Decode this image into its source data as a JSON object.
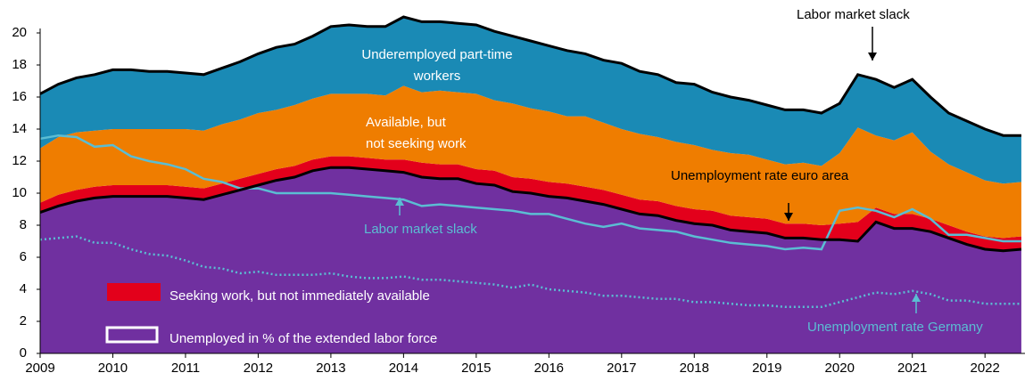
{
  "chart_data": {
    "type": "stacked_area",
    "x": [
      2009,
      2009.25,
      2009.5,
      2009.75,
      2010,
      2010.25,
      2010.5,
      2010.75,
      2011,
      2011.25,
      2011.5,
      2011.75,
      2012,
      2012.25,
      2012.5,
      2012.75,
      2013,
      2013.25,
      2013.5,
      2013.75,
      2014,
      2014.25,
      2014.5,
      2014.75,
      2015,
      2015.25,
      2015.5,
      2015.75,
      2016,
      2016.25,
      2016.5,
      2016.75,
      2017,
      2017.25,
      2017.5,
      2017.75,
      2018,
      2018.25,
      2018.5,
      2018.75,
      2019,
      2019.25,
      2019.5,
      2019.75,
      2020,
      2020.25,
      2020.5,
      2020.75,
      2021,
      2021.25,
      2021.5,
      2021.75,
      2022,
      2022.25,
      2022.5
    ],
    "xlim": [
      2009,
      2022.55
    ],
    "xticks": [
      2009,
      2010,
      2011,
      2012,
      2013,
      2014,
      2015,
      2016,
      2017,
      2018,
      2019,
      2020,
      2021,
      2022
    ],
    "ylim": [
      0,
      20
    ],
    "yticks": [
      0,
      2,
      4,
      6,
      8,
      10,
      12,
      14,
      16,
      18,
      20
    ],
    "series": [
      {
        "color": "#7030a0",
        "outline": "#000000",
        "values": [
          8.8,
          9.2,
          9.5,
          9.7,
          9.8,
          9.8,
          9.8,
          9.8,
          9.7,
          9.6,
          9.9,
          10.2,
          10.5,
          10.8,
          11.0,
          11.4,
          11.6,
          11.6,
          11.5,
          11.4,
          11.3,
          11.0,
          10.9,
          10.9,
          10.6,
          10.5,
          10.1,
          10.0,
          9.8,
          9.7,
          9.5,
          9.3,
          9.0,
          8.7,
          8.6,
          8.3,
          8.1,
          8.0,
          7.7,
          7.6,
          7.5,
          7.2,
          7.2,
          7.1,
          7.1,
          7.0,
          8.2,
          7.8,
          7.8,
          7.6,
          7.2,
          6.8,
          6.5,
          6.4,
          6.5
        ]
      },
      {
        "name": "Seeking work, but not immediately available",
        "color": "#e3001b",
        "values": [
          0.6,
          0.7,
          0.7,
          0.7,
          0.7,
          0.7,
          0.7,
          0.7,
          0.7,
          0.7,
          0.7,
          0.7,
          0.7,
          0.7,
          0.7,
          0.7,
          0.7,
          0.7,
          0.7,
          0.7,
          0.8,
          0.9,
          0.9,
          0.9,
          0.9,
          0.9,
          0.9,
          0.9,
          0.9,
          0.9,
          0.9,
          0.9,
          0.9,
          0.9,
          0.9,
          0.9,
          0.9,
          0.9,
          0.9,
          0.9,
          0.9,
          0.9,
          0.9,
          0.9,
          1.0,
          1.2,
          0.9,
          0.9,
          0.9,
          0.8,
          0.8,
          0.8,
          0.8,
          0.8,
          0.8
        ]
      },
      {
        "color": "#ef7d00",
        "values": [
          3.4,
          3.6,
          3.6,
          3.5,
          3.5,
          3.5,
          3.5,
          3.5,
          3.6,
          3.6,
          3.7,
          3.7,
          3.8,
          3.7,
          3.8,
          3.8,
          3.9,
          3.9,
          4.0,
          4.0,
          4.6,
          4.4,
          4.6,
          4.5,
          4.7,
          4.4,
          4.6,
          4.4,
          4.4,
          4.2,
          4.4,
          4.2,
          4.1,
          4.1,
          4.0,
          4.0,
          4.0,
          3.8,
          3.9,
          3.9,
          3.7,
          3.7,
          3.8,
          3.7,
          4.4,
          5.9,
          4.5,
          4.6,
          5.1,
          4.2,
          3.8,
          3.7,
          3.5,
          3.4,
          3.4
        ]
      },
      {
        "color": "#1a8ab5",
        "outline": "#000000",
        "values": [
          3.4,
          3.3,
          3.4,
          3.5,
          3.7,
          3.7,
          3.6,
          3.6,
          3.5,
          3.5,
          3.5,
          3.6,
          3.7,
          3.9,
          3.8,
          3.9,
          4.2,
          4.3,
          4.2,
          4.3,
          4.3,
          4.4,
          4.3,
          4.3,
          4.3,
          4.3,
          4.2,
          4.2,
          4.1,
          4.1,
          3.9,
          3.9,
          4.1,
          3.9,
          3.9,
          3.7,
          3.8,
          3.6,
          3.5,
          3.4,
          3.4,
          3.4,
          3.3,
          3.3,
          3.1,
          3.3,
          3.5,
          3.3,
          3.3,
          3.4,
          3.2,
          3.2,
          3.2,
          3.0,
          2.9
        ]
      }
    ],
    "lines": [
      {
        "color": "#5bbdd3",
        "style": "solid",
        "values": [
          13.4,
          13.6,
          13.5,
          12.9,
          13.0,
          12.3,
          12.0,
          11.8,
          11.5,
          10.9,
          10.7,
          10.3,
          10.3,
          10.0,
          10.0,
          10.0,
          10.0,
          9.9,
          9.8,
          9.7,
          9.6,
          9.2,
          9.3,
          9.2,
          9.1,
          9.0,
          8.9,
          8.7,
          8.7,
          8.4,
          8.1,
          7.9,
          8.1,
          7.8,
          7.7,
          7.6,
          7.3,
          7.1,
          6.9,
          6.8,
          6.7,
          6.5,
          6.6,
          6.5,
          8.9,
          9.1,
          8.9,
          8.5,
          9.0,
          8.4,
          7.4,
          7.4,
          7.2,
          7.0,
          7.0
        ]
      },
      {
        "color": "#5bbdd3",
        "style": "dotted",
        "values": [
          7.1,
          7.2,
          7.3,
          6.9,
          6.9,
          6.5,
          6.2,
          6.1,
          5.8,
          5.4,
          5.3,
          5.0,
          5.1,
          4.9,
          4.9,
          4.9,
          5.0,
          4.8,
          4.7,
          4.7,
          4.8,
          4.6,
          4.6,
          4.5,
          4.4,
          4.3,
          4.1,
          4.3,
          4.0,
          3.9,
          3.8,
          3.6,
          3.6,
          3.5,
          3.4,
          3.4,
          3.2,
          3.2,
          3.1,
          3.0,
          3.0,
          2.9,
          2.9,
          2.9,
          3.2,
          3.5,
          3.8,
          3.7,
          3.9,
          3.7,
          3.3,
          3.3,
          3.1,
          3.1,
          3.1
        ]
      }
    ],
    "annotations": [
      {
        "lines": [
          "Underemployed part-time",
          "workers"
        ],
        "color": "#ffffff"
      },
      {
        "lines": [
          "Available, but",
          "not  seeking work"
        ],
        "color": "#ffffff"
      },
      {
        "lines": [
          "Unemployment rate euro area"
        ],
        "color": "#000000"
      },
      {
        "lines": [
          "Labor market slack"
        ],
        "color": "#5bbdd3"
      },
      {
        "lines": [
          "Unemployment rate Germany"
        ],
        "color": "#5bbdd3"
      },
      {
        "lines": [
          "Labor market slack"
        ],
        "color": "#000000"
      }
    ],
    "legend": [
      {
        "series": 1
      },
      {
        "label": "Unemployed in % of the extended labor force",
        "outline": "#ffffff"
      }
    ]
  }
}
